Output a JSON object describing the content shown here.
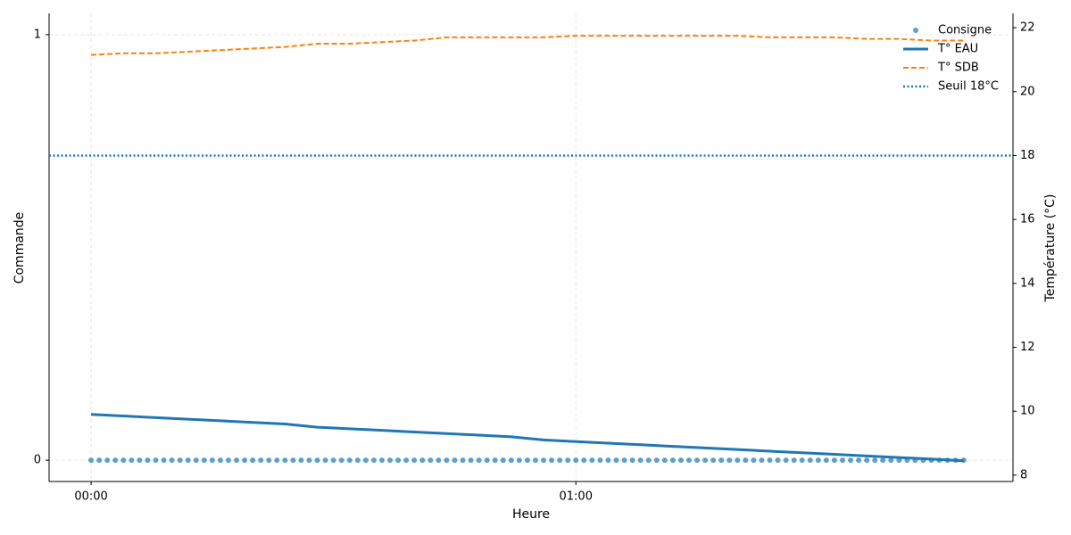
{
  "chart_data": {
    "type": "line",
    "xlabel": "Heure",
    "ylabel": "Commande",
    "y2label": "Température (°C)",
    "xlim": [
      -5.2,
      114.1
    ],
    "xticks": [
      {
        "value": 0,
        "label": "00:00"
      },
      {
        "value": 60,
        "label": "01:00"
      }
    ],
    "ylim": [
      -0.05,
      1.05
    ],
    "yticks": [
      0,
      1
    ],
    "y2lim": [
      7.8,
      22.45
    ],
    "y2ticks": [
      8,
      10,
      12,
      14,
      16,
      18,
      20,
      22
    ],
    "grid": true,
    "legend": "upper right",
    "series": [
      {
        "name": "Consigne",
        "color": "#1f77b4",
        "style": "dots",
        "axis": "y",
        "x": [
          0,
          1,
          2,
          3,
          4,
          5,
          6,
          7,
          8,
          9,
          10,
          11,
          12,
          13,
          14,
          15,
          16,
          17,
          18,
          19,
          20,
          21,
          22,
          23,
          24,
          25,
          26,
          27,
          28,
          29,
          30,
          31,
          32,
          33,
          34,
          35,
          36,
          37,
          38,
          39,
          40,
          41,
          42,
          43,
          44,
          45,
          46,
          47,
          48,
          49,
          50,
          51,
          52,
          53,
          54,
          55,
          56,
          57,
          58,
          59,
          60,
          61,
          62,
          63,
          64,
          65,
          66,
          67,
          68,
          69,
          70,
          71,
          72,
          73,
          74,
          75,
          76,
          77,
          78,
          79,
          80,
          81,
          82,
          83,
          84,
          85,
          86,
          87,
          88,
          89,
          90,
          91,
          92,
          93,
          94,
          95,
          96,
          97,
          98,
          99,
          100,
          101,
          102,
          103,
          104,
          105,
          106,
          107,
          108
        ],
        "values": [
          0,
          0,
          0,
          0,
          0,
          0,
          0,
          0,
          0,
          0,
          0,
          0,
          0,
          0,
          0,
          0,
          0,
          0,
          0,
          0,
          0,
          0,
          0,
          0,
          0,
          0,
          0,
          0,
          0,
          0,
          0,
          0,
          0,
          0,
          0,
          0,
          0,
          0,
          0,
          0,
          0,
          0,
          0,
          0,
          0,
          0,
          0,
          0,
          0,
          0,
          0,
          0,
          0,
          0,
          0,
          0,
          0,
          0,
          0,
          0,
          0,
          0,
          0,
          0,
          0,
          0,
          0,
          0,
          0,
          0,
          0,
          0,
          0,
          0,
          0,
          0,
          0,
          0,
          0,
          0,
          0,
          0,
          0,
          0,
          0,
          0,
          0,
          0,
          0,
          0,
          0,
          0,
          0,
          0,
          0,
          0,
          0,
          0,
          0,
          0,
          0,
          0,
          0,
          0,
          0,
          0,
          0,
          0,
          0
        ]
      },
      {
        "name": "T° EAU",
        "color": "#1f77b4",
        "style": "solid",
        "axis": "y2",
        "x": [
          0,
          4,
          8,
          12,
          16,
          20,
          24,
          28,
          32,
          36,
          40,
          44,
          48,
          52,
          56,
          60,
          64,
          68,
          72,
          76,
          80,
          84,
          88,
          92,
          96,
          100,
          104,
          108
        ],
        "values": [
          9.9,
          9.85,
          9.8,
          9.75,
          9.7,
          9.65,
          9.6,
          9.5,
          9.45,
          9.4,
          9.35,
          9.3,
          9.25,
          9.2,
          9.1,
          9.05,
          9.0,
          8.95,
          8.9,
          8.85,
          8.8,
          8.75,
          8.7,
          8.65,
          8.6,
          8.55,
          8.5,
          8.45
        ]
      },
      {
        "name": "T° SDB",
        "color": "#ff7f0e",
        "style": "dashed",
        "axis": "y2",
        "x": [
          0,
          4,
          8,
          12,
          16,
          20,
          24,
          28,
          32,
          36,
          40,
          44,
          48,
          52,
          56,
          60,
          64,
          68,
          72,
          76,
          80,
          84,
          88,
          92,
          96,
          100,
          104,
          108
        ],
        "values": [
          21.15,
          21.2,
          21.2,
          21.25,
          21.3,
          21.35,
          21.4,
          21.5,
          21.5,
          21.55,
          21.6,
          21.7,
          21.7,
          21.7,
          21.7,
          21.75,
          21.75,
          21.75,
          21.75,
          21.75,
          21.75,
          21.7,
          21.7,
          21.7,
          21.65,
          21.65,
          21.6,
          21.6
        ]
      },
      {
        "name": "Seuil 18°C",
        "color": "#1f77b4",
        "style": "dotted",
        "axis": "y2",
        "level": 18
      }
    ]
  }
}
